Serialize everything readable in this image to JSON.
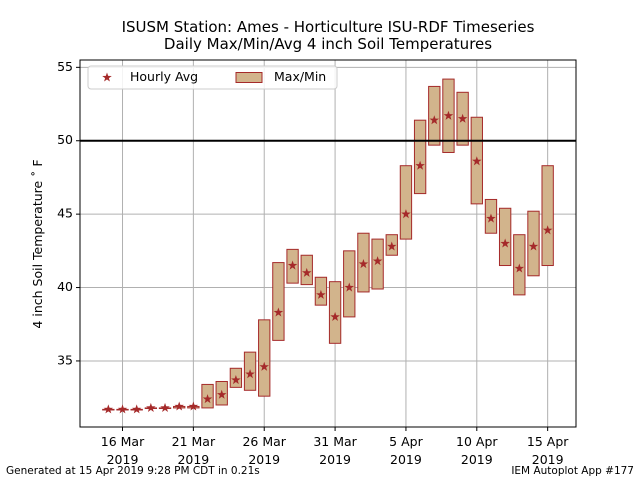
{
  "chart_data": {
    "type": "bar",
    "title": "ISUSM Station: Ames - Horticulture ISU-RDF Timeseries",
    "subtitle": "Daily Max/Min/Avg 4 inch Soil Temperatures",
    "ylabel": "4 inch Soil Temperature ˚ F",
    "xlabel": "",
    "ylim": [
      30.5,
      55.5
    ],
    "yticks": [
      35,
      40,
      45,
      50,
      55
    ],
    "xticks": [
      {
        "date": "2019-03-16",
        "label": [
          "16 Mar",
          "2019"
        ]
      },
      {
        "date": "2019-03-21",
        "label": [
          "21 Mar",
          "2019"
        ]
      },
      {
        "date": "2019-03-26",
        "label": [
          "26 Mar",
          "2019"
        ]
      },
      {
        "date": "2019-03-31",
        "label": [
          "31 Mar",
          "2019"
        ]
      },
      {
        "date": "2019-04-05",
        "label": [
          "5 Apr",
          "2019"
        ]
      },
      {
        "date": "2019-04-10",
        "label": [
          "10 Apr",
          "2019"
        ]
      },
      {
        "date": "2019-04-15",
        "label": [
          "15 Apr",
          "2019"
        ]
      }
    ],
    "xlim": [
      "2019-03-13",
      "2019-04-17"
    ],
    "grid": true,
    "reference_line": 50,
    "legend": {
      "placement": "upper-left",
      "entries": [
        "Hourly Avg",
        "Max/Min"
      ]
    },
    "colors": {
      "bar_fill": "#d2b48c",
      "bar_edge": "#a52a2a",
      "avg_marker": "#a52a2a",
      "reference": "#000000",
      "grid": "#b0b0b0"
    },
    "series": [
      {
        "name": "Hourly Avg",
        "type": "scatter",
        "marker": "star"
      },
      {
        "name": "Max/Min",
        "type": "floating-bar"
      }
    ],
    "points": [
      {
        "date": "2019-03-15",
        "min": 31.7,
        "max": 31.7,
        "avg": 31.7
      },
      {
        "date": "2019-03-16",
        "min": 31.7,
        "max": 31.7,
        "avg": 31.7
      },
      {
        "date": "2019-03-17",
        "min": 31.7,
        "max": 31.7,
        "avg": 31.7
      },
      {
        "date": "2019-03-18",
        "min": 31.8,
        "max": 31.8,
        "avg": 31.8
      },
      {
        "date": "2019-03-19",
        "min": 31.8,
        "max": 31.8,
        "avg": 31.8
      },
      {
        "date": "2019-03-20",
        "min": 31.8,
        "max": 31.9,
        "avg": 31.9
      },
      {
        "date": "2019-03-21",
        "min": 31.8,
        "max": 31.9,
        "avg": 31.9
      },
      {
        "date": "2019-03-22",
        "min": 31.8,
        "max": 33.4,
        "avg": 32.4
      },
      {
        "date": "2019-03-23",
        "min": 32.0,
        "max": 33.6,
        "avg": 32.7
      },
      {
        "date": "2019-03-24",
        "min": 33.2,
        "max": 34.5,
        "avg": 33.7
      },
      {
        "date": "2019-03-25",
        "min": 33.0,
        "max": 35.6,
        "avg": 34.1
      },
      {
        "date": "2019-03-26",
        "min": 32.6,
        "max": 37.8,
        "avg": 34.6
      },
      {
        "date": "2019-03-27",
        "min": 36.4,
        "max": 41.7,
        "avg": 38.3
      },
      {
        "date": "2019-03-28",
        "min": 40.3,
        "max": 42.6,
        "avg": 41.5
      },
      {
        "date": "2019-03-29",
        "min": 40.2,
        "max": 42.2,
        "avg": 41.0
      },
      {
        "date": "2019-03-30",
        "min": 38.8,
        "max": 40.7,
        "avg": 39.5
      },
      {
        "date": "2019-03-31",
        "min": 36.2,
        "max": 40.4,
        "avg": 38.0
      },
      {
        "date": "2019-04-01",
        "min": 38.0,
        "max": 42.5,
        "avg": 40.0
      },
      {
        "date": "2019-04-02",
        "min": 39.7,
        "max": 43.7,
        "avg": 41.6
      },
      {
        "date": "2019-04-03",
        "min": 39.9,
        "max": 43.3,
        "avg": 41.8
      },
      {
        "date": "2019-04-04",
        "min": 42.2,
        "max": 43.6,
        "avg": 42.8
      },
      {
        "date": "2019-04-05",
        "min": 43.3,
        "max": 48.3,
        "avg": 45.0
      },
      {
        "date": "2019-04-06",
        "min": 46.4,
        "max": 51.4,
        "avg": 48.3
      },
      {
        "date": "2019-04-07",
        "min": 49.7,
        "max": 53.7,
        "avg": 51.4
      },
      {
        "date": "2019-04-08",
        "min": 49.2,
        "max": 54.2,
        "avg": 51.7
      },
      {
        "date": "2019-04-09",
        "min": 49.7,
        "max": 53.3,
        "avg": 51.5
      },
      {
        "date": "2019-04-10",
        "min": 45.7,
        "max": 51.6,
        "avg": 48.6
      },
      {
        "date": "2019-04-11",
        "min": 43.7,
        "max": 46.0,
        "avg": 44.7
      },
      {
        "date": "2019-04-12",
        "min": 41.5,
        "max": 45.4,
        "avg": 43.0
      },
      {
        "date": "2019-04-13",
        "min": 39.5,
        "max": 43.6,
        "avg": 41.3
      },
      {
        "date": "2019-04-14",
        "min": 40.8,
        "max": 45.2,
        "avg": 42.8
      },
      {
        "date": "2019-04-15",
        "min": 41.5,
        "max": 48.3,
        "avg": 43.9
      }
    ]
  },
  "footer": {
    "left": "Generated at 15 Apr 2019 9:28 PM CDT in 0.21s",
    "right": "IEM Autoplot App #177"
  }
}
